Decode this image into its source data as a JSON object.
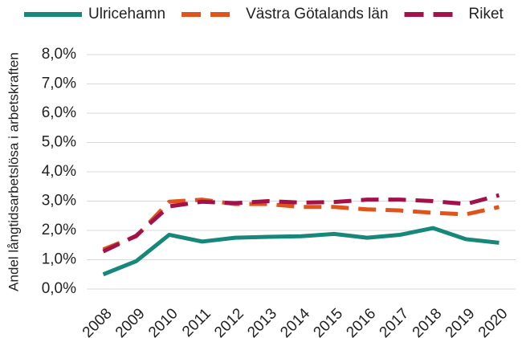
{
  "chart_data": {
    "type": "line",
    "y_axis_label": "Andel långtidsarbetslösa i arbetskraften",
    "categories": [
      "2008",
      "2009",
      "2010",
      "2011",
      "2012",
      "2013",
      "2014",
      "2015",
      "2016",
      "2017",
      "2018",
      "2019",
      "2020"
    ],
    "series": [
      {
        "name": "Ulricehamn",
        "color": "#17877a",
        "dashed": false,
        "values": [
          0.5,
          0.95,
          1.85,
          1.62,
          1.75,
          1.78,
          1.8,
          1.88,
          1.75,
          1.85,
          2.08,
          1.7,
          1.58
        ]
      },
      {
        "name": "Västra Götalands län",
        "color": "#e0531b",
        "dashed": true,
        "values": [
          1.35,
          1.8,
          2.98,
          3.05,
          2.9,
          2.9,
          2.8,
          2.8,
          2.72,
          2.68,
          2.6,
          2.55,
          2.8
        ]
      },
      {
        "name": "Riket",
        "color": "#a3114a",
        "dashed": true,
        "values": [
          1.28,
          1.82,
          2.82,
          2.98,
          2.93,
          3.0,
          2.95,
          2.97,
          3.05,
          3.05,
          3.0,
          2.9,
          3.2
        ]
      }
    ],
    "ylim": [
      0,
      8
    ],
    "yticks": [
      {
        "value": 0,
        "label": "0,0%"
      },
      {
        "value": 1,
        "label": "1,0%"
      },
      {
        "value": 2,
        "label": "2,0%"
      },
      {
        "value": 3,
        "label": "3,0%"
      },
      {
        "value": 4,
        "label": "4,0%"
      },
      {
        "value": 5,
        "label": "5,0%"
      },
      {
        "value": 6,
        "label": "6,0%"
      },
      {
        "value": 7,
        "label": "7,0%"
      },
      {
        "value": 8,
        "label": "8,0%"
      }
    ],
    "grid": true,
    "legend": "top"
  }
}
